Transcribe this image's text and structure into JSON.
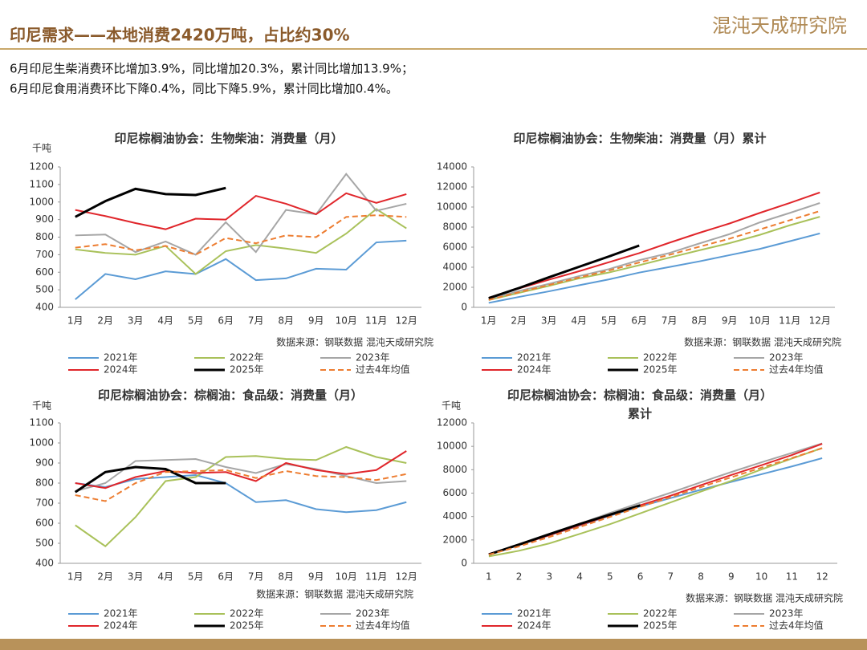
{
  "header": {
    "title": "印尼需求——本地消费2420万吨，占比约30%",
    "logo": "混沌天成研究院",
    "notes": [
      "6月印尼生柴消费环比增加3.9%，同比增加20.3%，累计同比增加13.9%；",
      "6月印尼食用消费环比下降0.4%，同比下降5.9%，累计同比增加0.4%。"
    ]
  },
  "chart_data": [
    {
      "type": "line",
      "title": [
        "印尼棕榈油协会：生物柴油：消费量（月）"
      ],
      "unit": "千吨",
      "source": "数据来源：钢联数据  混沌天成研究院",
      "categories": [
        "1月",
        "2月",
        "3月",
        "4月",
        "5月",
        "6月",
        "7月",
        "8月",
        "9月",
        "10月",
        "11月",
        "12月"
      ],
      "ylim": [
        400,
        1200
      ],
      "yticks": [
        400,
        500,
        600,
        700,
        800,
        900,
        1000,
        1100,
        1200
      ],
      "series": [
        {
          "name": "2021年",
          "color": "#5b9bd5",
          "values": [
            445,
            590,
            560,
            605,
            590,
            675,
            555,
            565,
            620,
            615,
            770,
            780
          ]
        },
        {
          "name": "2022年",
          "color": "#a9c15a",
          "values": [
            730,
            710,
            700,
            750,
            590,
            720,
            755,
            735,
            710,
            820,
            960,
            850
          ]
        },
        {
          "name": "2023年",
          "color": "#a6a6a6",
          "values": [
            810,
            815,
            715,
            775,
            700,
            885,
            715,
            955,
            930,
            1160,
            950,
            990
          ]
        },
        {
          "name": "2024年",
          "color": "#e0262b",
          "values": [
            955,
            920,
            880,
            845,
            905,
            900,
            1035,
            990,
            930,
            1050,
            995,
            1045
          ]
        },
        {
          "name": "2025年",
          "color": "#000000",
          "values": [
            915,
            1005,
            1075,
            1045,
            1040,
            1080,
            null,
            null,
            null,
            null,
            null,
            null
          ]
        },
        {
          "name": "过去4年均值",
          "color": "#ed7d31",
          "dashed": true,
          "values": [
            740,
            760,
            725,
            750,
            700,
            795,
            765,
            810,
            800,
            915,
            925,
            915
          ]
        }
      ]
    },
    {
      "type": "line",
      "title": [
        "印尼棕榈油协会：生物柴油：消费量（月）累计"
      ],
      "source": "数据来源：钢联数据  混沌天成研究院",
      "categories": [
        "1月",
        "2月",
        "3月",
        "4月",
        "5月",
        "6月",
        "7月",
        "8月",
        "9月",
        "10月",
        "11月",
        "12月"
      ],
      "ylim": [
        0,
        14000
      ],
      "yticks": [
        0,
        2000,
        4000,
        6000,
        8000,
        10000,
        12000,
        14000
      ],
      "series": [
        {
          "name": "2021年",
          "color": "#5b9bd5",
          "values": [
            445,
            1035,
            1595,
            2200,
            2790,
            3465,
            4020,
            4585,
            5205,
            5820,
            6590,
            7370
          ]
        },
        {
          "name": "2022年",
          "color": "#a9c15a",
          "values": [
            730,
            1440,
            2140,
            2890,
            3480,
            4200,
            4955,
            5690,
            6400,
            7220,
            8180,
            9030
          ]
        },
        {
          "name": "2023年",
          "color": "#a6a6a6",
          "values": [
            810,
            1625,
            2340,
            3115,
            3815,
            4700,
            5415,
            6370,
            7300,
            8460,
            9410,
            10400
          ]
        },
        {
          "name": "2024年",
          "color": "#e0262b",
          "values": [
            955,
            1875,
            2755,
            3600,
            4505,
            5405,
            6440,
            7430,
            8360,
            9410,
            10405,
            11450
          ]
        },
        {
          "name": "2025年",
          "color": "#000000",
          "values": [
            915,
            1920,
            2995,
            4040,
            5080,
            6160,
            null,
            null,
            null,
            null,
            null,
            null
          ]
        },
        {
          "name": "过去4年均值",
          "color": "#ed7d31",
          "dashed": true,
          "values": [
            740,
            1500,
            2225,
            2975,
            3675,
            4470,
            5235,
            6045,
            6845,
            7760,
            8685,
            9600
          ]
        }
      ]
    },
    {
      "type": "line",
      "title": [
        "印尼棕榈油协会：棕榈油：食品级：消费量（月）"
      ],
      "unit": "千吨",
      "source": "数据来源：钢联数据  混沌天成研究院",
      "categories": [
        "1月",
        "2月",
        "3月",
        "4月",
        "5月",
        "6月",
        "7月",
        "8月",
        "9月",
        "10月",
        "11月",
        "12月"
      ],
      "ylim": [
        400,
        1100
      ],
      "yticks": [
        400,
        500,
        600,
        700,
        800,
        900,
        1000,
        1100
      ],
      "series": [
        {
          "name": "2021年",
          "color": "#5b9bd5",
          "values": [
            800,
            780,
            820,
            830,
            840,
            800,
            705,
            715,
            670,
            655,
            665,
            705
          ]
        },
        {
          "name": "2022年",
          "color": "#a9c15a",
          "values": [
            590,
            485,
            630,
            810,
            830,
            930,
            935,
            920,
            915,
            980,
            930,
            900
          ]
        },
        {
          "name": "2023年",
          "color": "#a6a6a6",
          "values": [
            760,
            800,
            910,
            915,
            920,
            880,
            850,
            895,
            870,
            835,
            800,
            810
          ]
        },
        {
          "name": "2024年",
          "color": "#e0262b",
          "values": [
            800,
            775,
            830,
            860,
            850,
            855,
            810,
            900,
            865,
            845,
            865,
            960
          ]
        },
        {
          "name": "2025年",
          "color": "#000000",
          "values": [
            755,
            855,
            880,
            870,
            800,
            800,
            null,
            null,
            null,
            null,
            null,
            null
          ]
        },
        {
          "name": "过去4年均值",
          "color": "#ed7d31",
          "dashed": true,
          "values": [
            740,
            710,
            800,
            855,
            860,
            865,
            825,
            860,
            835,
            830,
            815,
            845
          ]
        }
      ]
    },
    {
      "type": "line",
      "title": [
        "印尼棕榈油协会：棕榈油：食品级：消费量（月）",
        "累计"
      ],
      "unit": "千吨",
      "source": "数据来源：钢联数据  混沌天成研究院",
      "categories": [
        "1",
        "2",
        "3",
        "4",
        "5",
        "6",
        "7",
        "8",
        "9",
        "10",
        "11",
        "12"
      ],
      "ylim": [
        0,
        12000
      ],
      "yticks": [
        0,
        2000,
        4000,
        6000,
        8000,
        10000,
        12000
      ],
      "series": [
        {
          "name": "2021年",
          "color": "#5b9bd5",
          "values": [
            800,
            1580,
            2400,
            3230,
            4070,
            4870,
            5575,
            6290,
            6960,
            7615,
            8280,
            8985
          ]
        },
        {
          "name": "2022年",
          "color": "#a9c15a",
          "values": [
            590,
            1075,
            1705,
            2515,
            3345,
            4275,
            5210,
            6130,
            7045,
            8025,
            8955,
            9855
          ]
        },
        {
          "name": "2023年",
          "color": "#a6a6a6",
          "values": [
            760,
            1560,
            2470,
            3385,
            4305,
            5185,
            6035,
            6930,
            7800,
            8635,
            9435,
            10245
          ]
        },
        {
          "name": "2024年",
          "color": "#e0262b",
          "values": [
            800,
            1575,
            2405,
            3265,
            4115,
            4970,
            5780,
            6680,
            7545,
            8390,
            9255,
            10215
          ]
        },
        {
          "name": "2025年",
          "color": "#000000",
          "values": [
            755,
            1610,
            2490,
            3360,
            4160,
            4960,
            null,
            null,
            null,
            null,
            null,
            null
          ]
        },
        {
          "name": "过去4年均值",
          "color": "#ed7d31",
          "dashed": true,
          "values": [
            740,
            1450,
            2250,
            3105,
            3965,
            4830,
            5655,
            6515,
            7350,
            8180,
            8995,
            9840
          ]
        }
      ]
    }
  ]
}
